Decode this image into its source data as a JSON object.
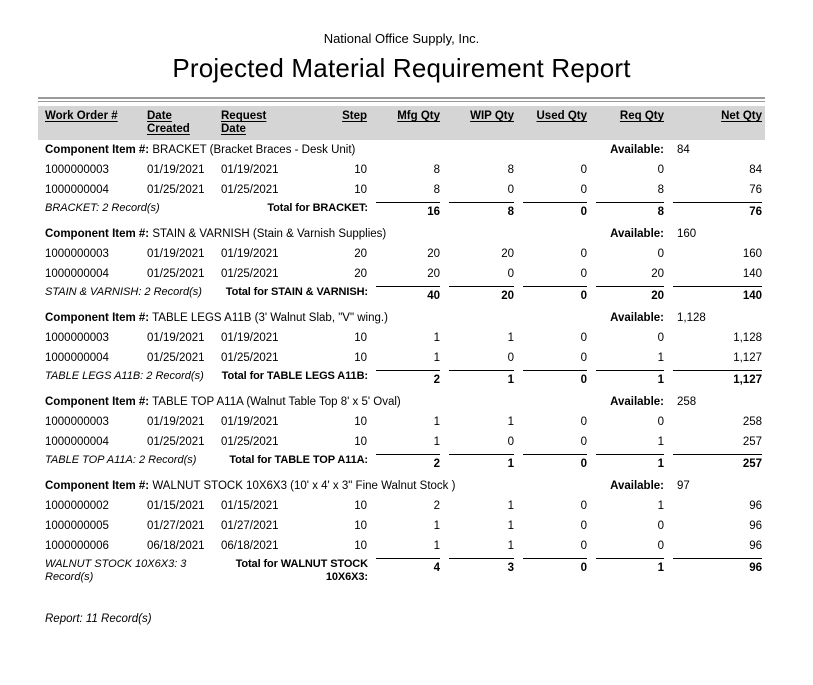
{
  "report": {
    "company": "National Office Supply, Inc.",
    "title": "Projected Material Requirement Report",
    "component_item_label": "Component Item #:",
    "available_label": "Available:",
    "footer": "Report: 11 Record(s)",
    "columns": [
      "Work Order #",
      "Date Created",
      "Request Date",
      "Step",
      "Mfg Qty",
      "WIP Qty",
      "Used Qty",
      "Req Qty",
      "Net Qty"
    ],
    "sections": [
      {
        "item": "BRACKET (Bracket Braces - Desk Unit)",
        "available": "84",
        "rows": [
          [
            "1000000003",
            "01/19/2021",
            "01/19/2021",
            "10",
            "8",
            "8",
            "0",
            "0",
            "84"
          ],
          [
            "1000000004",
            "01/25/2021",
            "01/25/2021",
            "10",
            "8",
            "0",
            "0",
            "8",
            "76"
          ]
        ],
        "record_label": "BRACKET: 2 Record(s)",
        "total_label": "Total for BRACKET:",
        "totals": [
          "16",
          "8",
          "0",
          "8",
          "76"
        ]
      },
      {
        "item": "STAIN & VARNISH (Stain & Varnish Supplies)",
        "available": "160",
        "rows": [
          [
            "1000000003",
            "01/19/2021",
            "01/19/2021",
            "20",
            "20",
            "20",
            "0",
            "0",
            "160"
          ],
          [
            "1000000004",
            "01/25/2021",
            "01/25/2021",
            "20",
            "20",
            "0",
            "0",
            "20",
            "140"
          ]
        ],
        "record_label": "STAIN & VARNISH: 2 Record(s)",
        "total_label": "Total for STAIN & VARNISH:",
        "totals": [
          "40",
          "20",
          "0",
          "20",
          "140"
        ]
      },
      {
        "item": "TABLE LEGS A11B (3' Walnut Slab, \"V\" wing.)",
        "available": "1,128",
        "rows": [
          [
            "1000000003",
            "01/19/2021",
            "01/19/2021",
            "10",
            "1",
            "1",
            "0",
            "0",
            "1,128"
          ],
          [
            "1000000004",
            "01/25/2021",
            "01/25/2021",
            "10",
            "1",
            "0",
            "0",
            "1",
            "1,127"
          ]
        ],
        "record_label": "TABLE LEGS A11B: 2 Record(s)",
        "total_label": "Total for TABLE LEGS A11B:",
        "totals": [
          "2",
          "1",
          "0",
          "1",
          "1,127"
        ]
      },
      {
        "item": "TABLE TOP A11A (Walnut Table Top 8' x 5' Oval)",
        "available": "258",
        "rows": [
          [
            "1000000003",
            "01/19/2021",
            "01/19/2021",
            "10",
            "1",
            "1",
            "0",
            "0",
            "258"
          ],
          [
            "1000000004",
            "01/25/2021",
            "01/25/2021",
            "10",
            "1",
            "0",
            "0",
            "1",
            "257"
          ]
        ],
        "record_label": "TABLE TOP A11A: 2 Record(s)",
        "total_label": "Total for TABLE TOP A11A:",
        "totals": [
          "2",
          "1",
          "0",
          "1",
          "257"
        ]
      },
      {
        "item": "WALNUT STOCK 10X6X3 (10' x 4' x 3\" Fine Walnut Stock )",
        "available": "97",
        "rows": [
          [
            "1000000002",
            "01/15/2021",
            "01/15/2021",
            "10",
            "2",
            "1",
            "0",
            "1",
            "96"
          ],
          [
            "1000000005",
            "01/27/2021",
            "01/27/2021",
            "10",
            "1",
            "1",
            "0",
            "0",
            "96"
          ],
          [
            "1000000006",
            "06/18/2021",
            "06/18/2021",
            "10",
            "1",
            "1",
            "0",
            "0",
            "96"
          ]
        ],
        "record_label": "WALNUT STOCK 10X6X3: 3 Record(s)",
        "total_label": "Total for WALNUT STOCK 10X6X3:",
        "totals": [
          "4",
          "3",
          "0",
          "1",
          "96"
        ]
      }
    ]
  }
}
